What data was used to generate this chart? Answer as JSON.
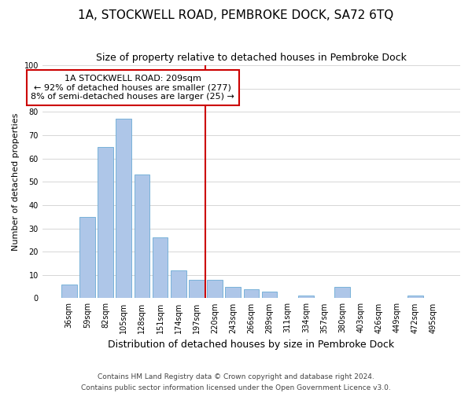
{
  "title": "1A, STOCKWELL ROAD, PEMBROKE DOCK, SA72 6TQ",
  "subtitle": "Size of property relative to detached houses in Pembroke Dock",
  "xlabel": "Distribution of detached houses by size in Pembroke Dock",
  "ylabel": "Number of detached properties",
  "bar_labels": [
    "36sqm",
    "59sqm",
    "82sqm",
    "105sqm",
    "128sqm",
    "151sqm",
    "174sqm",
    "197sqm",
    "220sqm",
    "243sqm",
    "266sqm",
    "289sqm",
    "311sqm",
    "334sqm",
    "357sqm",
    "380sqm",
    "403sqm",
    "426sqm",
    "449sqm",
    "472sqm",
    "495sqm"
  ],
  "bar_values": [
    6,
    35,
    65,
    77,
    53,
    26,
    12,
    8,
    8,
    5,
    4,
    3,
    0,
    1,
    0,
    5,
    0,
    0,
    0,
    1,
    0
  ],
  "bar_color": "#aec6e8",
  "bar_edge_color": "#6aaad4",
  "vline_color": "#cc0000",
  "annotation_text": "1A STOCKWELL ROAD: 209sqm\n← 92% of detached houses are smaller (277)\n8% of semi-detached houses are larger (25) →",
  "annotation_box_color": "#ffffff",
  "annotation_box_edge": "#cc0000",
  "ylim": [
    0,
    100
  ],
  "yticks": [
    0,
    10,
    20,
    30,
    40,
    50,
    60,
    70,
    80,
    90,
    100
  ],
  "footnote": "Contains HM Land Registry data © Crown copyright and database right 2024.\nContains public sector information licensed under the Open Government Licence v3.0.",
  "title_fontsize": 11,
  "subtitle_fontsize": 9,
  "xlabel_fontsize": 9,
  "ylabel_fontsize": 8,
  "tick_fontsize": 7,
  "annotation_fontsize": 8,
  "footnote_fontsize": 6.5
}
